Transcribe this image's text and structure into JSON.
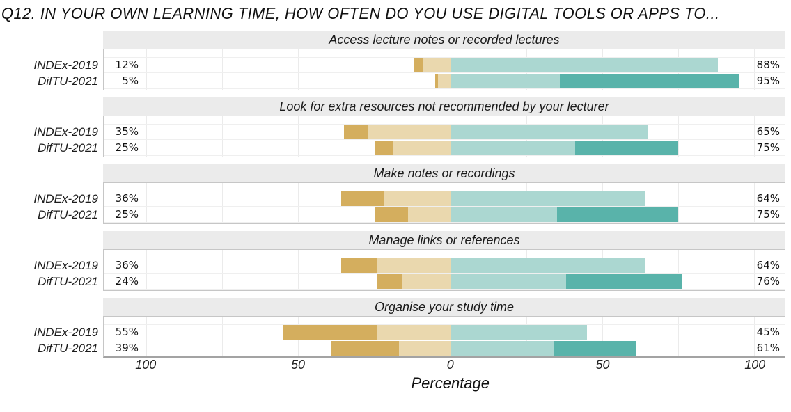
{
  "colors": {
    "left_dark": "#d4ae5e",
    "left_light": "#ead8ae",
    "right_light": "#abd7d1",
    "right_dark": "#59b3aa",
    "panel_header_bg": "#ebebeb"
  },
  "chart_data": {
    "type": "bar",
    "variant": "diverging-stacked-horizontal",
    "title": "Q12. IN YOUR OWN LEARNING TIME, HOW OFTEN DO YOU USE DIGITAL TOOLS OR APPS TO...",
    "xlabel": "Percentage",
    "xlim": [
      -114,
      110
    ],
    "x_ticks": [
      -100,
      -50,
      0,
      50,
      100
    ],
    "x_tick_labels": [
      "100",
      "50",
      "0",
      "50",
      "100"
    ],
    "gridlines": [
      -100,
      -75,
      -50,
      -25,
      25,
      50,
      75,
      100
    ],
    "grid": true,
    "legend": "none",
    "series_note": "Each bar: two gold segments diverging left of zero (darker = outermost) and two teal segments right of zero (darker = outermost). Values in percent.",
    "panels": [
      {
        "header": "Access lecture notes or recorded lectures",
        "rows": [
          {
            "label": "INDEx-2019",
            "left_label": "12%",
            "right_label": "88%",
            "left_dark": 3,
            "left_light": 9,
            "right_light": 88,
            "right_dark": 0
          },
          {
            "label": "DifTU-2021",
            "left_label": "5%",
            "right_label": "95%",
            "left_dark": 1,
            "left_light": 4,
            "right_light": 36,
            "right_dark": 59
          }
        ]
      },
      {
        "header": "Look for extra resources not recommended by your lecturer",
        "rows": [
          {
            "label": "INDEx-2019",
            "left_label": "35%",
            "right_label": "65%",
            "left_dark": 8,
            "left_light": 27,
            "right_light": 65,
            "right_dark": 0
          },
          {
            "label": "DifTU-2021",
            "left_label": "25%",
            "right_label": "75%",
            "left_dark": 6,
            "left_light": 19,
            "right_light": 41,
            "right_dark": 34
          }
        ]
      },
      {
        "header": "Make notes or recordings",
        "rows": [
          {
            "label": "INDEx-2019",
            "left_label": "36%",
            "right_label": "64%",
            "left_dark": 14,
            "left_light": 22,
            "right_light": 64,
            "right_dark": 0
          },
          {
            "label": "DifTU-2021",
            "left_label": "25%",
            "right_label": "75%",
            "left_dark": 11,
            "left_light": 14,
            "right_light": 35,
            "right_dark": 40
          }
        ]
      },
      {
        "header": "Manage links or references",
        "rows": [
          {
            "label": "INDEx-2019",
            "left_label": "36%",
            "right_label": "64%",
            "left_dark": 12,
            "left_light": 24,
            "right_light": 64,
            "right_dark": 0
          },
          {
            "label": "DifTU-2021",
            "left_label": "24%",
            "right_label": "76%",
            "left_dark": 8,
            "left_light": 16,
            "right_light": 38,
            "right_dark": 38
          }
        ]
      },
      {
        "header": "Organise your study time",
        "rows": [
          {
            "label": "INDEx-2019",
            "left_label": "55%",
            "right_label": "45%",
            "left_dark": 31,
            "left_light": 24,
            "right_light": 45,
            "right_dark": 0
          },
          {
            "label": "DifTU-2021",
            "left_label": "39%",
            "right_label": "61%",
            "left_dark": 22,
            "left_light": 17,
            "right_light": 34,
            "right_dark": 27
          }
        ]
      }
    ]
  }
}
